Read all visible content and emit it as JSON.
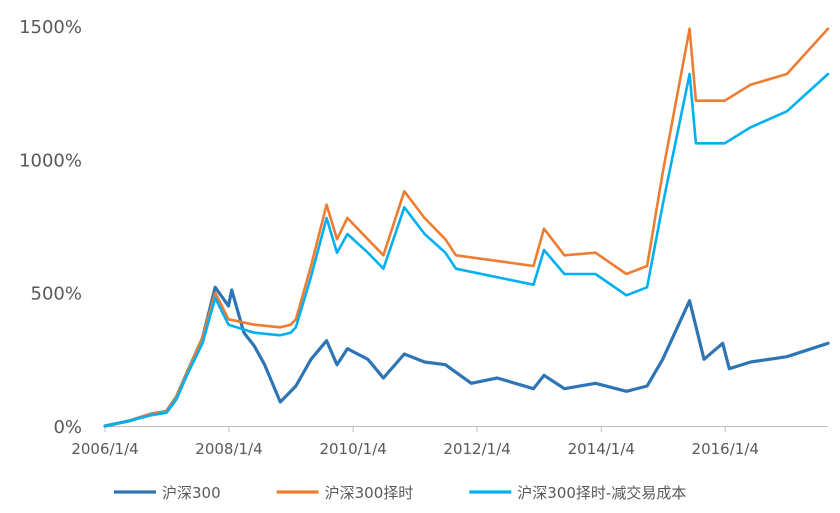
{
  "chart_data": {
    "type": "line",
    "title": "",
    "xlabel": "",
    "ylabel": "",
    "ylim": [
      0,
      1500
    ],
    "yticks": [
      0,
      500,
      1000,
      1500
    ],
    "ytick_labels": [
      "0%",
      "500%",
      "1000%",
      "1500%"
    ],
    "x_range": [
      "2006/1/4",
      "2017/8/31"
    ],
    "xticks": [
      "2006/1/4",
      "2008/1/4",
      "2010/1/4",
      "2012/1/4",
      "2014/1/4",
      "2016/1/4"
    ],
    "legend_position": "bottom",
    "grid": false,
    "series": [
      {
        "name": "沪深300",
        "color": "#2e75b6",
        "points": [
          [
            "2006/1/4",
            0
          ],
          [
            "2006/6/1",
            20
          ],
          [
            "2006/10/1",
            45
          ],
          [
            "2007/1/1",
            55
          ],
          [
            "2007/3/1",
            110
          ],
          [
            "2007/5/1",
            200
          ],
          [
            "2007/8/1",
            330
          ],
          [
            "2007/10/15",
            520
          ],
          [
            "2008/1/1",
            450
          ],
          [
            "2008/1/20",
            510
          ],
          [
            "2008/4/1",
            350
          ],
          [
            "2008/6/1",
            300
          ],
          [
            "2008/8/1",
            230
          ],
          [
            "2008/11/1",
            90
          ],
          [
            "2009/2/1",
            150
          ],
          [
            "2009/5/1",
            250
          ],
          [
            "2009/8/1",
            320
          ],
          [
            "2009/10/1",
            230
          ],
          [
            "2009/12/1",
            290
          ],
          [
            "2010/4/1",
            250
          ],
          [
            "2010/7/1",
            180
          ],
          [
            "2010/11/1",
            270
          ],
          [
            "2011/3/1",
            240
          ],
          [
            "2011/7/1",
            230
          ],
          [
            "2011/12/1",
            160
          ],
          [
            "2012/5/1",
            180
          ],
          [
            "2012/12/1",
            140
          ],
          [
            "2013/2/1",
            190
          ],
          [
            "2013/6/1",
            140
          ],
          [
            "2013/12/1",
            160
          ],
          [
            "2014/6/1",
            130
          ],
          [
            "2014/10/1",
            150
          ],
          [
            "2015/1/1",
            250
          ],
          [
            "2015/6/8",
            470
          ],
          [
            "2015/9/1",
            250
          ],
          [
            "2015/12/20",
            310
          ],
          [
            "2016/1/28",
            215
          ],
          [
            "2016/6/1",
            240
          ],
          [
            "2017/1/1",
            260
          ],
          [
            "2017/8/31",
            310
          ]
        ]
      },
      {
        "name": "沪深300择时",
        "color": "#ed7d31",
        "points": [
          [
            "2006/1/4",
            0
          ],
          [
            "2006/6/1",
            20
          ],
          [
            "2006/10/1",
            45
          ],
          [
            "2007/1/1",
            55
          ],
          [
            "2007/3/1",
            110
          ],
          [
            "2007/5/1",
            200
          ],
          [
            "2007/8/1",
            330
          ],
          [
            "2007/10/15",
            500
          ],
          [
            "2008/1/1",
            400
          ],
          [
            "2008/6/1",
            380
          ],
          [
            "2008/11/1",
            370
          ],
          [
            "2009/1/1",
            380
          ],
          [
            "2009/2/1",
            400
          ],
          [
            "2009/5/1",
            600
          ],
          [
            "2009/8/1",
            830
          ],
          [
            "2009/10/1",
            700
          ],
          [
            "2009/12/1",
            780
          ],
          [
            "2010/4/1",
            700
          ],
          [
            "2010/7/1",
            640
          ],
          [
            "2010/11/1",
            880
          ],
          [
            "2011/3/1",
            780
          ],
          [
            "2011/7/1",
            700
          ],
          [
            "2011/9/1",
            640
          ],
          [
            "2012/12/1",
            600
          ],
          [
            "2013/2/1",
            740
          ],
          [
            "2013/6/1",
            640
          ],
          [
            "2013/12/1",
            650
          ],
          [
            "2014/6/1",
            570
          ],
          [
            "2014/10/1",
            600
          ],
          [
            "2015/1/1",
            950
          ],
          [
            "2015/6/8",
            1490
          ],
          [
            "2015/7/15",
            1220
          ],
          [
            "2016/1/1",
            1220
          ],
          [
            "2016/6/1",
            1280
          ],
          [
            "2017/1/1",
            1320
          ],
          [
            "2017/8/31",
            1490
          ]
        ]
      },
      {
        "name": "沪深300择时-减交易成本",
        "color": "#00b0f0",
        "points": [
          [
            "2006/1/4",
            0
          ],
          [
            "2006/6/1",
            20
          ],
          [
            "2006/10/1",
            40
          ],
          [
            "2007/1/1",
            50
          ],
          [
            "2007/3/1",
            100
          ],
          [
            "2007/5/1",
            190
          ],
          [
            "2007/8/1",
            310
          ],
          [
            "2007/10/15",
            480
          ],
          [
            "2008/1/1",
            380
          ],
          [
            "2008/6/1",
            350
          ],
          [
            "2008/11/1",
            340
          ],
          [
            "2009/1/1",
            350
          ],
          [
            "2009/2/1",
            370
          ],
          [
            "2009/5/1",
            560
          ],
          [
            "2009/8/1",
            780
          ],
          [
            "2009/10/1",
            650
          ],
          [
            "2009/12/1",
            720
          ],
          [
            "2010/4/1",
            650
          ],
          [
            "2010/7/1",
            590
          ],
          [
            "2010/11/1",
            820
          ],
          [
            "2011/3/1",
            720
          ],
          [
            "2011/7/1",
            650
          ],
          [
            "2011/9/1",
            590
          ],
          [
            "2012/12/1",
            530
          ],
          [
            "2013/2/1",
            660
          ],
          [
            "2013/6/1",
            570
          ],
          [
            "2013/12/1",
            570
          ],
          [
            "2014/6/1",
            490
          ],
          [
            "2014/10/1",
            520
          ],
          [
            "2015/1/1",
            830
          ],
          [
            "2015/6/8",
            1320
          ],
          [
            "2015/7/15",
            1060
          ],
          [
            "2016/1/1",
            1060
          ],
          [
            "2016/6/1",
            1120
          ],
          [
            "2017/1/1",
            1180
          ],
          [
            "2017/8/31",
            1320
          ]
        ]
      }
    ]
  }
}
